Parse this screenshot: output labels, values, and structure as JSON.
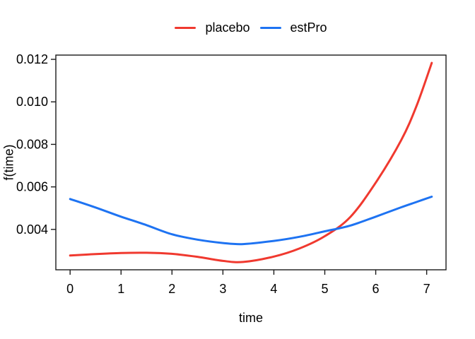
{
  "chart_data": {
    "type": "line",
    "title": "",
    "xlabel": "time",
    "ylabel": "f(time)",
    "grid": false,
    "legend_position": "top-center",
    "axis_color": "#1a1a1a",
    "background": "#ffffff",
    "xlim": [
      -0.28,
      7.38
    ],
    "ylim": [
      0.0021,
      0.0122
    ],
    "x_ticks": [
      0,
      1,
      2,
      3,
      4,
      5,
      6,
      7
    ],
    "x_tick_labels": [
      "0",
      "1",
      "2",
      "3",
      "4",
      "5",
      "6",
      "7"
    ],
    "y_ticks": [
      0.004,
      0.006,
      0.008,
      0.01,
      0.012
    ],
    "y_tick_labels": [
      "0.004",
      "0.006",
      "0.008",
      "0.010",
      "0.012"
    ],
    "x": [
      0,
      0.5,
      1,
      1.5,
      2,
      2.5,
      3,
      3.4,
      4,
      4.5,
      5,
      5.5,
      6,
      6.5,
      6.8,
      7.1
    ],
    "series": [
      {
        "name": "placebo",
        "color": "#F0392F",
        "values": [
          0.00277,
          0.00284,
          0.00289,
          0.0029,
          0.00285,
          0.00271,
          0.00252,
          0.00247,
          0.00272,
          0.0031,
          0.00368,
          0.00458,
          0.0062,
          0.0082,
          0.0098,
          0.01183
        ]
      },
      {
        "name": "estPro",
        "color": "#1E73F2",
        "values": [
          0.00543,
          0.00503,
          0.0046,
          0.0042,
          0.00377,
          0.00352,
          0.00336,
          0.00331,
          0.00346,
          0.00365,
          0.00391,
          0.00418,
          0.0046,
          0.00504,
          0.00529,
          0.00554
        ]
      }
    ]
  }
}
